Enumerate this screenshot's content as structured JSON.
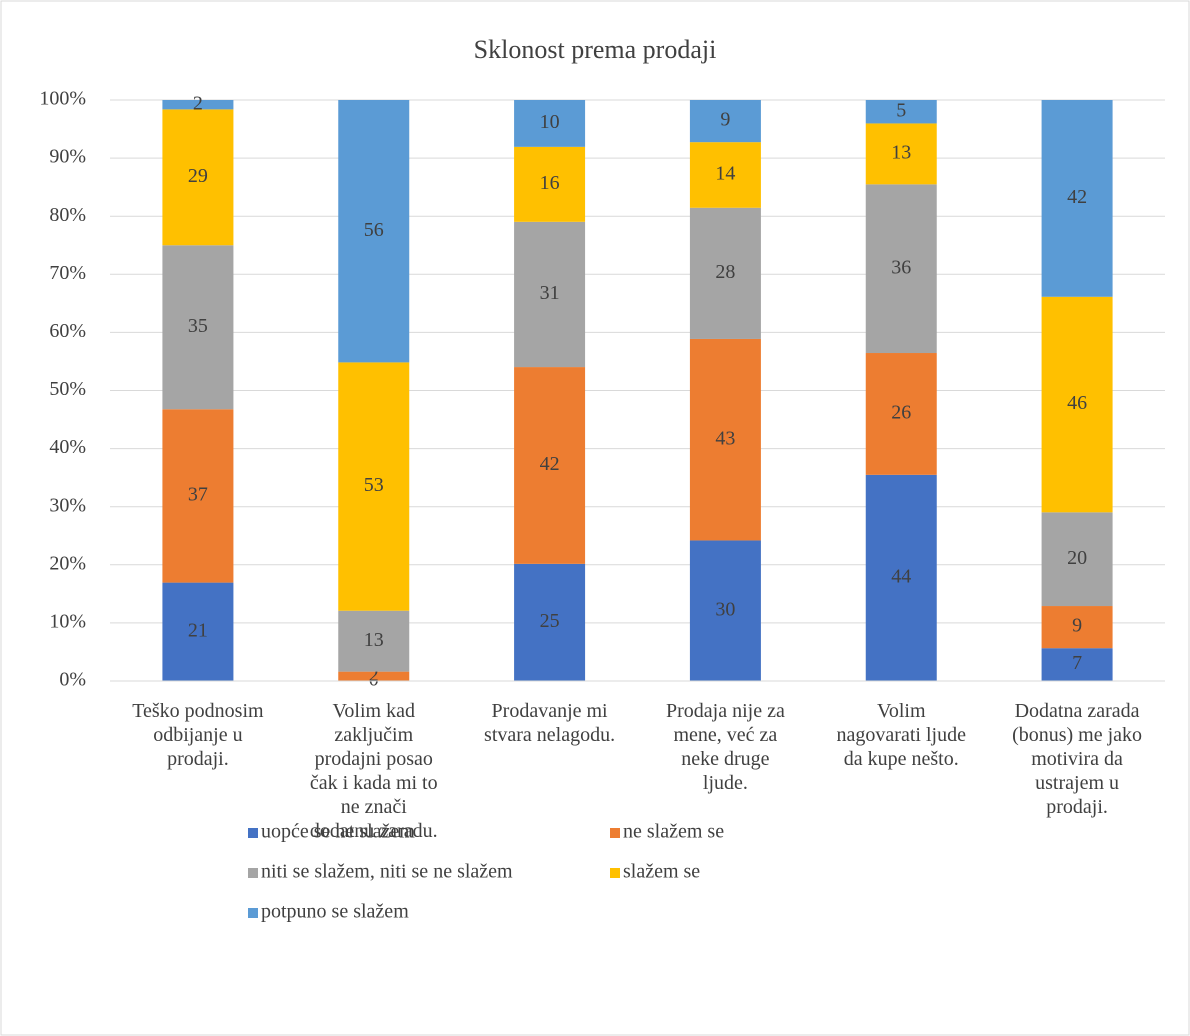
{
  "chart_data": {
    "type": "bar",
    "stacked": "percent",
    "title": "Sklonost prema prodaji",
    "categories": [
      "Teško podnosim odbijanje u prodaji.",
      "Volim kad zaključim prodajni posao čak i kada mi to ne znači dodatnu zaradu.",
      "Prodavanje mi stvara nelagodu.",
      "Prodaja nije za mene, već za neke druge ljude.",
      "Volim nagovarati ljude da kupe nešto.",
      "Dodatna zarada (bonus) me jako motivira da ustrajem u prodaji."
    ],
    "series": [
      {
        "name": "uopće se ne slažem",
        "color": "#4472c4",
        "values": [
          21,
          0,
          25,
          30,
          44,
          7
        ]
      },
      {
        "name": "ne slažem se",
        "color": "#ed7d31",
        "values": [
          37,
          2,
          42,
          43,
          26,
          9
        ]
      },
      {
        "name": "niti se slažem, niti se ne slažem",
        "color": "#a5a5a5",
        "values": [
          35,
          13,
          31,
          28,
          36,
          20
        ]
      },
      {
        "name": "slažem se",
        "color": "#ffc000",
        "values": [
          29,
          53,
          16,
          14,
          13,
          46
        ]
      },
      {
        "name": "potpuno se slažem",
        "color": "#5b9bd5",
        "values": [
          2,
          56,
          10,
          9,
          5,
          42
        ]
      }
    ],
    "ylim": [
      0,
      100
    ],
    "yticks": [
      {
        "value": 0,
        "label": "0%"
      },
      {
        "value": 10,
        "label": "10%"
      },
      {
        "value": 20,
        "label": "20%"
      },
      {
        "value": 30,
        "label": "30%"
      },
      {
        "value": 40,
        "label": "40%"
      },
      {
        "value": 50,
        "label": "50%"
      },
      {
        "value": 60,
        "label": "60%"
      },
      {
        "value": 70,
        "label": "70%"
      },
      {
        "value": 80,
        "label": "80%"
      },
      {
        "value": 90,
        "label": "90%"
      },
      {
        "value": 100,
        "label": "100%"
      }
    ],
    "grid": true,
    "legend": "bottom"
  }
}
